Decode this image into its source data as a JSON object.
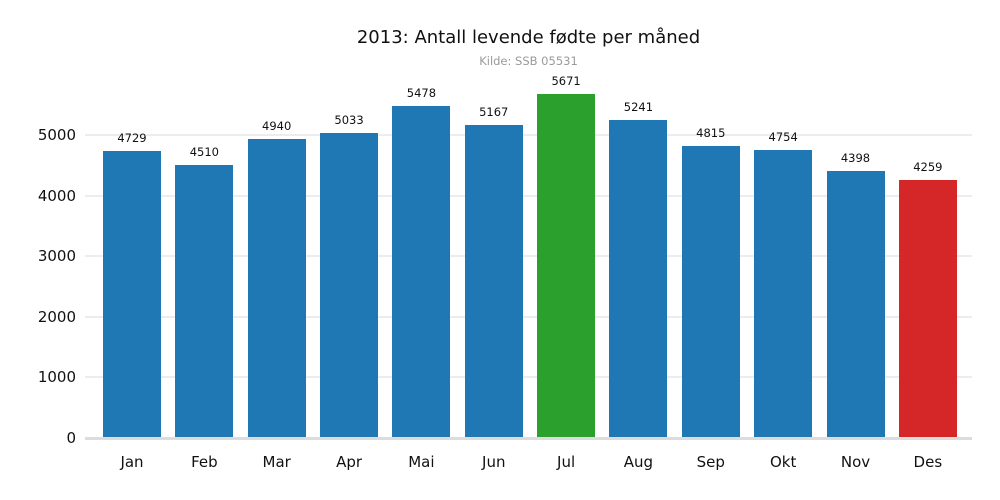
{
  "chart_data": {
    "type": "bar",
    "title": "2013: Antall levende fødte per måned",
    "subtitle": "Kilde: SSB 05531",
    "categories": [
      "Jan",
      "Feb",
      "Mar",
      "Apr",
      "Mai",
      "Jun",
      "Jul",
      "Aug",
      "Sep",
      "Okt",
      "Nov",
      "Des"
    ],
    "values": [
      4729,
      4510,
      4940,
      5033,
      5478,
      5167,
      5671,
      5241,
      4815,
      4754,
      4398,
      4259
    ],
    "colors": [
      "#1f77b4",
      "#1f77b4",
      "#1f77b4",
      "#1f77b4",
      "#1f77b4",
      "#1f77b4",
      "#2ca02c",
      "#1f77b4",
      "#1f77b4",
      "#1f77b4",
      "#1f77b4",
      "#d62728"
    ],
    "highlight": {
      "default_color": "#1f77b4",
      "max_category": "Jul",
      "max_color": "#2ca02c",
      "min_category": "Des",
      "min_color": "#d62728"
    },
    "xlabel": "",
    "ylabel": "",
    "yticks": [
      0,
      1000,
      2000,
      3000,
      4000,
      5000
    ],
    "ylim": [
      0,
      5800
    ],
    "grid": "horizontal",
    "value_labels": true,
    "legend": "none",
    "background_color": "#ffffff",
    "gridline_color": "#ededed",
    "baseline_color": "#dcdcdc",
    "text_color": "#111111",
    "subtitle_color": "#9a9a9a"
  }
}
